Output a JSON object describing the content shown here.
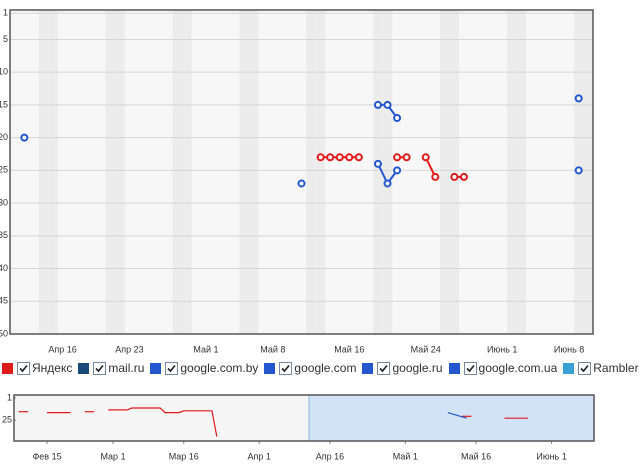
{
  "chart_data": [
    {
      "type": "line",
      "y_inverted": true,
      "grid": true,
      "markers": true,
      "ylim": [
        0.5,
        50
      ],
      "yticks": [
        1,
        5,
        10,
        15,
        20,
        25,
        30,
        35,
        40,
        45,
        50
      ],
      "categories": [
        null,
        null,
        null,
        null,
        null,
        "Апр 16",
        null,
        null,
        null,
        null,
        null,
        null,
        "Апр 23",
        null,
        null,
        null,
        null,
        null,
        null,
        null,
        "Май 1",
        null,
        null,
        null,
        null,
        null,
        null,
        "Май 8",
        null,
        null,
        null,
        null,
        null,
        null,
        null,
        "Май 16",
        null,
        null,
        null,
        null,
        null,
        null,
        null,
        "Май 24",
        null,
        null,
        null,
        null,
        null,
        null,
        null,
        "Июнь 1",
        null,
        null,
        null,
        null,
        null,
        null,
        "Июнь 8",
        null,
        null
      ],
      "series": [
        {
          "name": "Яндекс",
          "color": "#e01b1b",
          "values": [
            null,
            null,
            null,
            null,
            null,
            null,
            null,
            null,
            null,
            null,
            null,
            null,
            null,
            null,
            null,
            null,
            null,
            null,
            null,
            null,
            null,
            null,
            null,
            null,
            null,
            null,
            null,
            null,
            null,
            null,
            null,
            null,
            23,
            23,
            23,
            23,
            23,
            null,
            null,
            null,
            23,
            23,
            null,
            23,
            26,
            null,
            26,
            26,
            null,
            null,
            null,
            null,
            null,
            null,
            null,
            null,
            null,
            null,
            null,
            null,
            null
          ]
        },
        {
          "name": "mail.ru",
          "color": "#1b4a7a",
          "values": [
            null,
            null,
            null,
            null,
            null,
            null,
            null,
            null,
            null,
            null,
            null,
            null,
            null,
            null,
            null,
            null,
            null,
            null,
            null,
            null,
            null,
            null,
            null,
            null,
            null,
            null,
            null,
            null,
            null,
            null,
            null,
            null,
            null,
            null,
            null,
            null,
            null,
            null,
            null,
            null,
            null,
            null,
            null,
            null,
            null,
            null,
            null,
            null,
            null,
            null,
            null,
            null,
            null,
            null,
            null,
            null,
            null,
            null,
            null,
            null,
            null
          ]
        },
        {
          "name": "google.com.by",
          "color": "#2456d0",
          "values": [
            null,
            null,
            null,
            null,
            null,
            null,
            null,
            null,
            null,
            null,
            null,
            null,
            null,
            null,
            null,
            null,
            null,
            null,
            null,
            null,
            null,
            null,
            null,
            null,
            null,
            null,
            null,
            null,
            null,
            null,
            null,
            null,
            null,
            null,
            null,
            null,
            null,
            null,
            null,
            null,
            null,
            null,
            null,
            null,
            null,
            null,
            null,
            null,
            null,
            null,
            null,
            null,
            null,
            null,
            null,
            null,
            null,
            null,
            null,
            null,
            null
          ]
        },
        {
          "name": "google.com",
          "color": "#2456d0",
          "values": [
            null,
            20,
            null,
            null,
            null,
            null,
            null,
            null,
            null,
            null,
            null,
            null,
            null,
            null,
            null,
            null,
            null,
            null,
            null,
            null,
            null,
            null,
            null,
            null,
            null,
            null,
            null,
            null,
            null,
            null,
            27,
            null,
            null,
            null,
            null,
            null,
            null,
            null,
            24,
            27,
            25,
            null,
            null,
            null,
            null,
            null,
            null,
            null,
            null,
            null,
            null,
            null,
            null,
            null,
            null,
            null,
            null,
            null,
            null,
            25,
            null
          ]
        },
        {
          "name": "google.ru",
          "color": "#2456d0",
          "values": [
            null,
            null,
            null,
            null,
            null,
            null,
            null,
            null,
            null,
            null,
            null,
            null,
            null,
            null,
            null,
            null,
            null,
            null,
            null,
            null,
            null,
            null,
            null,
            null,
            null,
            null,
            null,
            null,
            null,
            null,
            null,
            null,
            null,
            null,
            null,
            null,
            null,
            null,
            15,
            15,
            17,
            null,
            null,
            null,
            null,
            null,
            null,
            null,
            null,
            null,
            null,
            null,
            null,
            null,
            null,
            null,
            null,
            null,
            null,
            14,
            null
          ]
        },
        {
          "name": "google.com.ua",
          "color": "#2456d0",
          "values": [
            null,
            null,
            null,
            null,
            null,
            null,
            null,
            null,
            null,
            null,
            null,
            null,
            null,
            null,
            null,
            null,
            null,
            null,
            null,
            null,
            null,
            null,
            null,
            null,
            null,
            null,
            null,
            null,
            null,
            null,
            null,
            null,
            null,
            null,
            null,
            null,
            null,
            null,
            null,
            null,
            null,
            null,
            null,
            null,
            null,
            null,
            null,
            null,
            null,
            null,
            null,
            null,
            null,
            null,
            null,
            null,
            null,
            null,
            null,
            null,
            null
          ]
        },
        {
          "name": "Rambler",
          "color": "#3aa0d8",
          "values": [
            null,
            null,
            null,
            null,
            null,
            null,
            null,
            null,
            null,
            null,
            null,
            null,
            null,
            null,
            null,
            null,
            null,
            null,
            null,
            null,
            null,
            null,
            null,
            null,
            null,
            null,
            null,
            null,
            null,
            null,
            null,
            null,
            null,
            null,
            null,
            null,
            null,
            null,
            null,
            null,
            null,
            null,
            null,
            null,
            null,
            null,
            null,
            null,
            null,
            null,
            null,
            null,
            null,
            null,
            null,
            null,
            null,
            null,
            null,
            null,
            null
          ]
        }
      ]
    },
    {
      "type": "line",
      "y_inverted": true,
      "grid": false,
      "markers": false,
      "ylim": [
        0,
        50
      ],
      "yticks": [
        1,
        25
      ],
      "xlim": [
        -1,
        122
      ],
      "xticks": [
        {
          "value": 6,
          "label": "Фев 15"
        },
        {
          "value": 20,
          "label": "Мар 1"
        },
        {
          "value": 35,
          "label": "Мар 16"
        },
        {
          "value": 51,
          "label": "Апр 1"
        },
        {
          "value": 66,
          "label": "Апр 16"
        },
        {
          "value": 82,
          "label": "Май 1"
        },
        {
          "value": 97,
          "label": "Май 16"
        },
        {
          "value": 113,
          "label": "Июнь 1"
        }
      ],
      "series": [
        {
          "color": "#e01b1b",
          "x": [
            0,
            2,
            null,
            6,
            11,
            null,
            14,
            16,
            null,
            19,
            23,
            24,
            30,
            31,
            34,
            35,
            41,
            42,
            null,
            94,
            96,
            null,
            103,
            108
          ],
          "values": [
            16,
            16,
            null,
            17,
            17,
            null,
            16,
            16,
            null,
            14,
            14,
            12,
            12,
            17,
            17,
            15,
            15,
            43,
            null,
            21,
            21,
            null,
            23,
            23
          ]
        },
        {
          "color": "#2456d0",
          "x": [
            91,
            93,
            95
          ],
          "values": [
            17,
            20,
            23
          ]
        }
      ]
    }
  ]
}
